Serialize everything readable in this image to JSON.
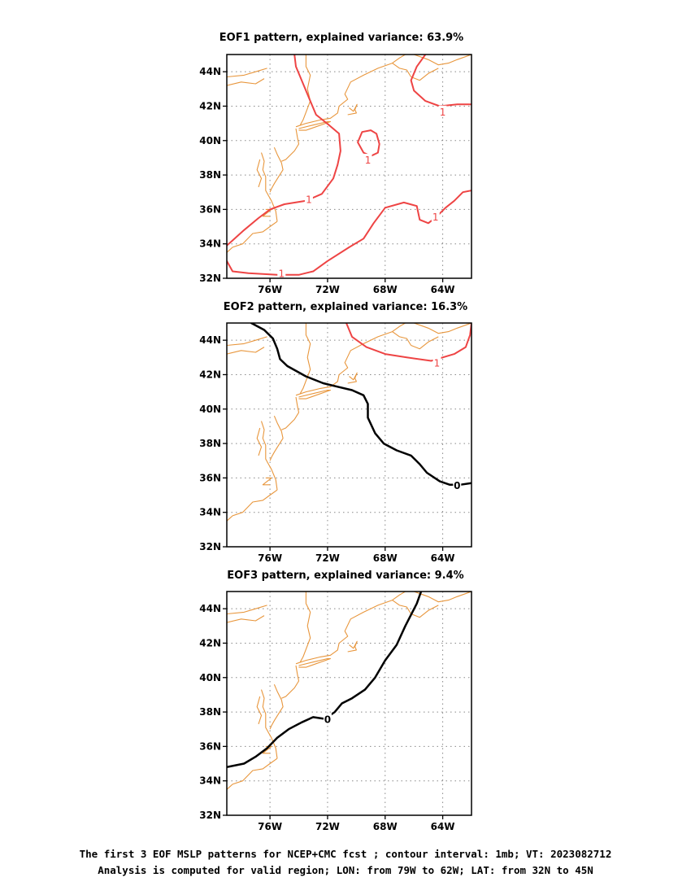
{
  "panels": [
    {
      "title": "EOF1 pattern, explained variance: 63.9%",
      "contours": [
        {
          "level": "1",
          "color": "#ee4444",
          "labels": [
            {
              "lon": -73.3,
              "lat": 36.6
            },
            {
              "lon": -69.2,
              "lat": 38.9
            },
            {
              "lon": -64.0,
              "lat": 41.7
            },
            {
              "lon": -64.5,
              "lat": 35.6
            },
            {
              "lon": -75.2,
              "lat": 32.3
            }
          ]
        },
        {
          "level": "",
          "color": "#ee4444",
          "labels": []
        }
      ]
    },
    {
      "title": "EOF2 pattern, explained variance: 16.3%",
      "contours": [
        {
          "level": "1",
          "color": "#ee4444",
          "labels": [
            {
              "lon": -64.4,
              "lat": 42.7
            }
          ]
        },
        {
          "level": "0",
          "color": "#000000",
          "labels": [
            {
              "lon": -63.0,
              "lat": 35.6
            }
          ]
        }
      ]
    },
    {
      "title": "EOF3 pattern, explained variance: 9.4%",
      "contours": [
        {
          "level": "0",
          "color": "#000000",
          "labels": [
            {
              "lon": -72.0,
              "lat": 37.6
            }
          ]
        }
      ]
    }
  ],
  "axes": {
    "lon_range": [
      -79,
      -62
    ],
    "lat_range": [
      32,
      45
    ],
    "lon_ticks": [
      "76W",
      "72W",
      "68W",
      "64W"
    ],
    "lat_ticks": [
      "32N",
      "34N",
      "36N",
      "38N",
      "40N",
      "42N",
      "44N"
    ],
    "grid": "dotted"
  },
  "colors": {
    "coastline": "#e8963c",
    "positive_contour": "#ee4444",
    "zero_contour": "#000000"
  },
  "caption": {
    "line1": "The first 3 EOF MSLP patterns for NCEP+CMC fcst ; contour interval: 1mb; VT: 2023082712",
    "line2": "Analysis is computed for valid region; LON: from 79W to 62W; LAT: from 32N to 45N"
  }
}
